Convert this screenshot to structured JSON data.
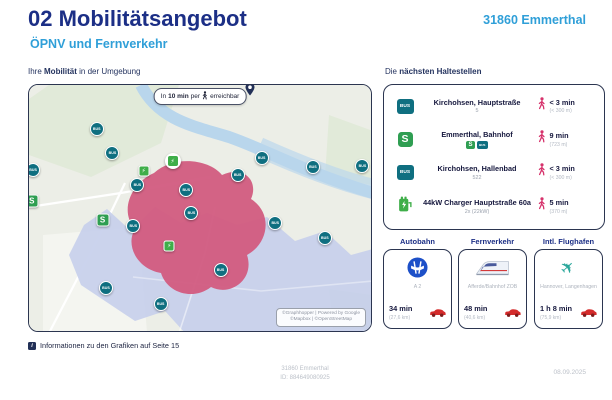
{
  "colors": {
    "navy": "#1c2f86",
    "cyan": "#2f9fd8",
    "teal": "#0f6f80",
    "green": "#2f9e52",
    "green2": "#3fae49",
    "pink": "#d6336c",
    "red": "#d42b2b"
  },
  "header": {
    "title": "02 Mobilitätsangebot",
    "subtitle": "ÖPNV und Fernverkehr",
    "location": "31860 Emmerthal"
  },
  "map": {
    "label": {
      "p1": "Ihre ",
      "b": "Mobilität",
      "p2": " in der Umgebung"
    },
    "badge": {
      "t1": "In ",
      "b": "10 min",
      "t2": " per",
      "t3": "erreichbar"
    },
    "attribution": {
      "line1": "©Graphhopper | Powered by Google",
      "line2": "©Mapbox | ©OpenStreetMap"
    },
    "markers": [
      {
        "type": "bus",
        "label": "BUS",
        "x": 19.8,
        "y": 17.7
      },
      {
        "type": "bus",
        "label": "BUS",
        "x": 24.4,
        "y": 27.8
      },
      {
        "type": "bus",
        "label": "BUS",
        "x": 1.2,
        "y": 34.5
      },
      {
        "type": "bus",
        "label": "BUS",
        "x": 31.7,
        "y": 40.7
      },
      {
        "type": "bus",
        "label": "BUS",
        "x": 46.0,
        "y": 42.5
      },
      {
        "type": "bus",
        "label": "BUS",
        "x": 61.0,
        "y": 36.5
      },
      {
        "type": "bus",
        "label": "BUS",
        "x": 68.0,
        "y": 29.5
      },
      {
        "type": "bus",
        "label": "BUS",
        "x": 83.0,
        "y": 33.5
      },
      {
        "type": "bus",
        "label": "BUS",
        "x": 97.5,
        "y": 33.0
      },
      {
        "type": "bus",
        "label": "BUS",
        "x": 47.5,
        "y": 52.0
      },
      {
        "type": "bus",
        "label": "BUS",
        "x": 72.0,
        "y": 56.0
      },
      {
        "type": "bus",
        "label": "BUS",
        "x": 86.5,
        "y": 62.0
      },
      {
        "type": "bus",
        "label": "BUS",
        "x": 30.5,
        "y": 57.5
      },
      {
        "type": "bus",
        "label": "BUS",
        "x": 22.5,
        "y": 82.5
      },
      {
        "type": "bus",
        "label": "BUS",
        "x": 38.5,
        "y": 89.0
      },
      {
        "type": "bus",
        "label": "BUS",
        "x": 56.0,
        "y": 75.0
      },
      {
        "type": "sbahn",
        "label": "S",
        "x": 21.5,
        "y": 55.0
      },
      {
        "type": "sbahn",
        "label": "S",
        "x": 0.8,
        "y": 47.0
      },
      {
        "type": "charger",
        "label": "",
        "x": 42.0,
        "y": 31.0
      },
      {
        "type": "chargersm",
        "label": "⚡",
        "x": 33.5,
        "y": 35.0
      },
      {
        "type": "chargersm",
        "label": "⚡",
        "x": 41.0,
        "y": 65.5
      }
    ]
  },
  "stops": {
    "label": {
      "p1": "Die ",
      "b": "nächsten Haltestellen"
    },
    "items": [
      {
        "badge": "BUS",
        "title": "Kirchohsen, Hauptstraße",
        "subtitle": "5",
        "time": "< 3 min",
        "distance": "(< 300 m)"
      },
      {
        "badge": "S",
        "title": "Emmerthal, Bahnhof",
        "sub_badges": {
          "s": "S",
          "bus": "BUS"
        },
        "time": "9 min",
        "distance": "(723 m)"
      },
      {
        "badge": "BUS",
        "title": "Kirchohsen, Hallenbad",
        "subtitle": "522",
        "time": "< 3 min",
        "distance": "(< 300 m)"
      },
      {
        "badge": "charger",
        "title": "44kW Charger Hauptstraße 60a",
        "subtitle": "2x (22kW)",
        "time": "5 min",
        "distance": "(370 m)"
      }
    ]
  },
  "connections": [
    {
      "label": "Autobahn",
      "name": "A 2",
      "time": "34 min",
      "distance": "(27,6 km)"
    },
    {
      "label": "Fernverkehr",
      "name": "Afferde/Bahnhof ZOB",
      "time": "48 min",
      "distance": "(40,6 km)"
    },
    {
      "label": "Intl. Flughafen",
      "name": "Hannover, Langenhagen",
      "time": "1 h 8 min",
      "distance": "(75,9 km)"
    }
  ],
  "footer": {
    "note": "Informationen zu den Grafiken auf Seite 15",
    "location": "31860 Emmerthal",
    "id": "ID: 884649080925",
    "date": "08.09.2025"
  }
}
